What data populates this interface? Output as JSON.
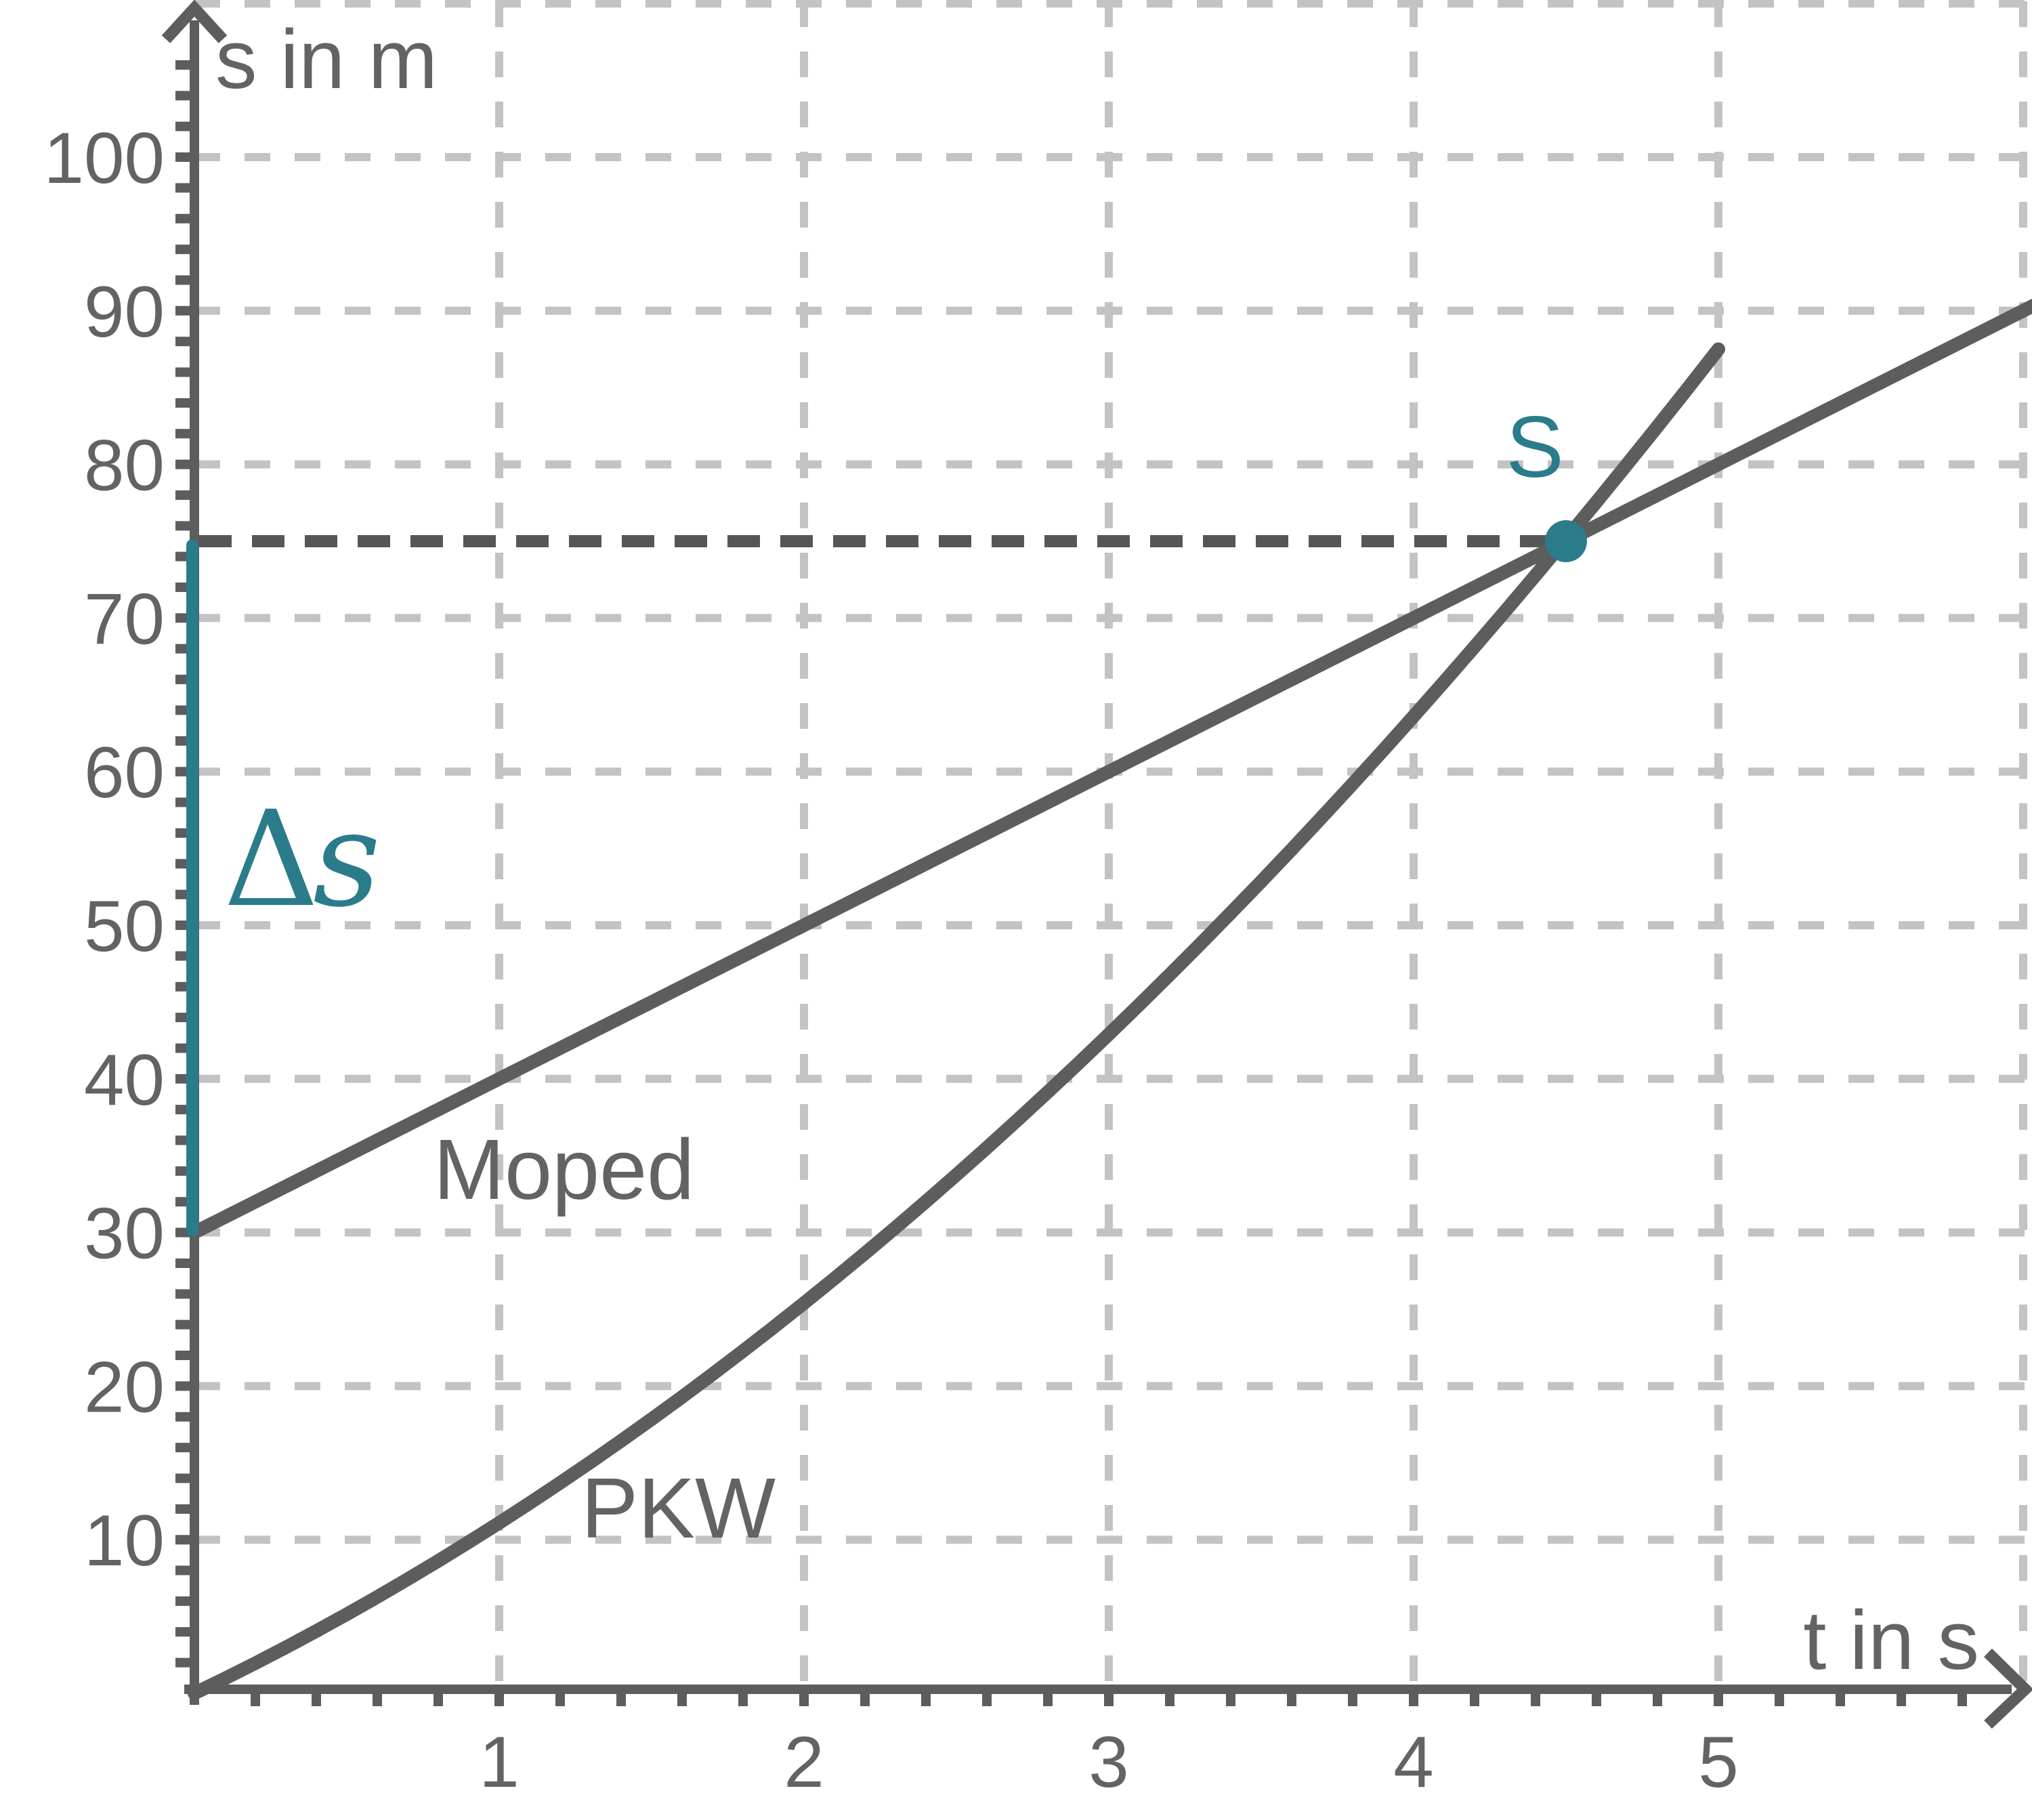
{
  "figure": {
    "background": "#ffffff",
    "colors": {
      "line_gray": "#5d5d5d",
      "text_gray": "#636363",
      "grid_gray": "#c3c3c3",
      "dashed_gray": "#565656",
      "teal": "#2b7c8b"
    },
    "y_axis": {
      "title": "s in m",
      "tick_labels": [
        "10",
        "20",
        "30",
        "40",
        "50",
        "60",
        "70",
        "80",
        "90",
        "100"
      ],
      "tick_values": [
        10,
        20,
        30,
        40,
        50,
        60,
        70,
        80,
        90,
        100
      ],
      "minor_tick_step": 2,
      "gridline_step": 10
    },
    "x_axis": {
      "title": "t in s",
      "tick_labels": [
        "1",
        "2",
        "3",
        "4",
        "5"
      ],
      "tick_values": [
        1,
        2,
        3,
        4,
        5
      ],
      "minor_tick_step": 0.2,
      "gridline_step": 1
    }
  },
  "chart_data": {
    "type": "line",
    "title": "",
    "xlabel": "t in s",
    "ylabel": "s in m",
    "xlim": [
      0,
      6.05
    ],
    "ylim": [
      0,
      110
    ],
    "grid": "dashed",
    "x_gridlines": [
      1,
      2,
      3,
      4,
      5,
      6
    ],
    "y_gridlines": [
      10,
      20,
      30,
      40,
      50,
      60,
      70,
      80,
      90,
      100,
      110
    ],
    "series": [
      {
        "name": "Moped",
        "shape": "straight-line",
        "equation": "s = 30 + 10·t",
        "s0": 30,
        "v": 10,
        "t_domain": [
          0,
          6.04
        ],
        "points": [
          [
            0,
            30
          ],
          [
            1,
            40
          ],
          [
            2,
            50
          ],
          [
            3,
            60
          ],
          [
            4,
            70
          ],
          [
            4.5,
            75
          ],
          [
            5,
            80
          ],
          [
            6,
            90
          ]
        ]
      },
      {
        "name": "PKW",
        "shape": "accelerating-curve",
        "equation": "s ≈ 9.5·t + 1.6·t²",
        "v0": 9.5,
        "q": 1.6,
        "t_domain": [
          0,
          5.0
        ],
        "points": [
          [
            0,
            0
          ],
          [
            1,
            11.1
          ],
          [
            2,
            25.4
          ],
          [
            3,
            42.9
          ],
          [
            4,
            63.6
          ],
          [
            4.5,
            75
          ],
          [
            5,
            87.5
          ]
        ]
      }
    ],
    "intersection": {
      "label": "S",
      "t": 4.5,
      "s": 75
    },
    "delta_s": {
      "symbol": "Δ",
      "var": "s",
      "from_s": 30,
      "to_s": 75,
      "value_m": 45
    },
    "dashed_helper_line_s": 75
  }
}
